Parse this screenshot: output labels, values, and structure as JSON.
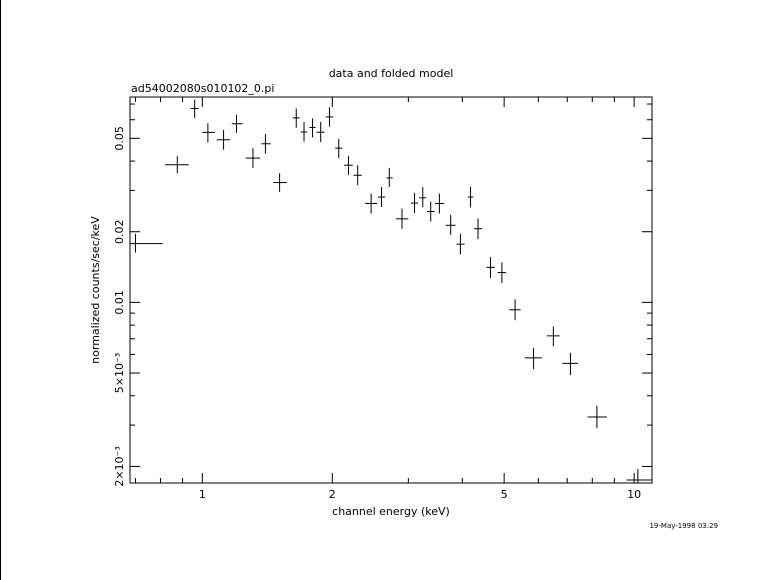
{
  "chart_data": {
    "type": "scatter",
    "title": "data and folded model",
    "subtitle": "ad54002080s010102_0.pi",
    "xlabel": "channel energy (keV)",
    "ylabel": "normalized counts/sec/keV",
    "xscale": "log",
    "yscale": "log",
    "xlim": [
      0.68,
      11.0
    ],
    "ylim": [
      0.0017,
      0.075
    ],
    "x_ticks": [
      {
        "value": 1,
        "label": "1"
      },
      {
        "value": 2,
        "label": "2"
      },
      {
        "value": 5,
        "label": "5"
      },
      {
        "value": 10,
        "label": "10"
      }
    ],
    "y_ticks": [
      {
        "value": 0.002,
        "label": "2×10⁻³"
      },
      {
        "value": 0.005,
        "label": "5×10⁻³"
      },
      {
        "value": 0.01,
        "label": "0.01"
      },
      {
        "value": 0.02,
        "label": "0.02"
      },
      {
        "value": 0.05,
        "label": "0.05"
      }
    ],
    "grid": false,
    "series": [
      {
        "points": [
          {
            "x": 0.7,
            "xlo": 0.68,
            "xhi": 0.81,
            "y": 0.0178,
            "ylo": 0.0163,
            "yhi": 0.0196
          },
          {
            "x": 0.875,
            "xlo": 0.82,
            "xhi": 0.93,
            "y": 0.0386,
            "ylo": 0.0355,
            "yhi": 0.042
          },
          {
            "x": 0.96,
            "xlo": 0.94,
            "xhi": 0.98,
            "y": 0.067,
            "ylo": 0.061,
            "yhi": 0.073
          },
          {
            "x": 1.03,
            "xlo": 1.0,
            "xhi": 1.07,
            "y": 0.053,
            "ylo": 0.048,
            "yhi": 0.058
          },
          {
            "x": 1.12,
            "xlo": 1.08,
            "xhi": 1.16,
            "y": 0.0493,
            "ylo": 0.0447,
            "yhi": 0.0543
          },
          {
            "x": 1.2,
            "xlo": 1.17,
            "xhi": 1.24,
            "y": 0.0577,
            "ylo": 0.0528,
            "yhi": 0.063
          },
          {
            "x": 1.31,
            "xlo": 1.26,
            "xhi": 1.36,
            "y": 0.0412,
            "ylo": 0.0374,
            "yhi": 0.0454
          },
          {
            "x": 1.4,
            "xlo": 1.37,
            "xhi": 1.44,
            "y": 0.0474,
            "ylo": 0.043,
            "yhi": 0.0522
          },
          {
            "x": 1.51,
            "xlo": 1.46,
            "xhi": 1.57,
            "y": 0.0324,
            "ylo": 0.0296,
            "yhi": 0.0355
          },
          {
            "x": 1.65,
            "xlo": 1.62,
            "xhi": 1.68,
            "y": 0.0611,
            "ylo": 0.0554,
            "yhi": 0.067
          },
          {
            "x": 1.72,
            "xlo": 1.69,
            "xhi": 1.75,
            "y": 0.0532,
            "ylo": 0.0484,
            "yhi": 0.0587
          },
          {
            "x": 1.8,
            "xlo": 1.77,
            "xhi": 1.83,
            "y": 0.0556,
            "ylo": 0.0505,
            "yhi": 0.0608
          },
          {
            "x": 1.88,
            "xlo": 1.84,
            "xhi": 1.92,
            "y": 0.0531,
            "ylo": 0.0482,
            "yhi": 0.0587
          },
          {
            "x": 1.97,
            "xlo": 1.93,
            "xhi": 2.01,
            "y": 0.0617,
            "ylo": 0.0561,
            "yhi": 0.0678
          },
          {
            "x": 2.07,
            "xlo": 2.03,
            "xhi": 2.11,
            "y": 0.0454,
            "ylo": 0.0412,
            "yhi": 0.0497
          },
          {
            "x": 2.18,
            "xlo": 2.13,
            "xhi": 2.23,
            "y": 0.0384,
            "ylo": 0.0349,
            "yhi": 0.0421
          },
          {
            "x": 2.29,
            "xlo": 2.24,
            "xhi": 2.34,
            "y": 0.0348,
            "ylo": 0.0316,
            "yhi": 0.0384
          },
          {
            "x": 2.46,
            "xlo": 2.38,
            "xhi": 2.54,
            "y": 0.0264,
            "ylo": 0.0239,
            "yhi": 0.0291
          },
          {
            "x": 2.6,
            "xlo": 2.55,
            "xhi": 2.65,
            "y": 0.0281,
            "ylo": 0.0255,
            "yhi": 0.031
          },
          {
            "x": 2.71,
            "xlo": 2.67,
            "xhi": 2.76,
            "y": 0.0339,
            "ylo": 0.031,
            "yhi": 0.0374
          },
          {
            "x": 2.9,
            "xlo": 2.81,
            "xhi": 3.0,
            "y": 0.0227,
            "ylo": 0.0206,
            "yhi": 0.0251
          },
          {
            "x": 3.1,
            "xlo": 3.04,
            "xhi": 3.16,
            "y": 0.0265,
            "ylo": 0.024,
            "yhi": 0.0293
          },
          {
            "x": 3.24,
            "xlo": 3.18,
            "xhi": 3.3,
            "y": 0.0279,
            "ylo": 0.0254,
            "yhi": 0.031
          },
          {
            "x": 3.38,
            "xlo": 3.31,
            "xhi": 3.45,
            "y": 0.0244,
            "ylo": 0.0221,
            "yhi": 0.0269
          },
          {
            "x": 3.54,
            "xlo": 3.46,
            "xhi": 3.63,
            "y": 0.0264,
            "ylo": 0.0239,
            "yhi": 0.0291
          },
          {
            "x": 3.76,
            "xlo": 3.66,
            "xhi": 3.86,
            "y": 0.0213,
            "ylo": 0.0194,
            "yhi": 0.0236
          },
          {
            "x": 3.96,
            "xlo": 3.88,
            "xhi": 4.05,
            "y": 0.0177,
            "ylo": 0.016,
            "yhi": 0.0196
          },
          {
            "x": 4.18,
            "xlo": 4.12,
            "xhi": 4.24,
            "y": 0.0281,
            "ylo": 0.0254,
            "yhi": 0.0311
          },
          {
            "x": 4.35,
            "xlo": 4.26,
            "xhi": 4.45,
            "y": 0.0206,
            "ylo": 0.0186,
            "yhi": 0.0228
          },
          {
            "x": 4.65,
            "xlo": 4.55,
            "xhi": 4.76,
            "y": 0.0141,
            "ylo": 0.0127,
            "yhi": 0.0156
          },
          {
            "x": 4.94,
            "xlo": 4.83,
            "xhi": 5.05,
            "y": 0.0134,
            "ylo": 0.0121,
            "yhi": 0.0148
          },
          {
            "x": 5.3,
            "xlo": 5.14,
            "xhi": 5.46,
            "y": 0.0093,
            "ylo": 0.0084,
            "yhi": 0.0103
          },
          {
            "x": 5.85,
            "xlo": 5.58,
            "xhi": 6.12,
            "y": 0.0058,
            "ylo": 0.0052,
            "yhi": 0.0064
          },
          {
            "x": 6.5,
            "xlo": 6.28,
            "xhi": 6.72,
            "y": 0.0072,
            "ylo": 0.0065,
            "yhi": 0.0079
          },
          {
            "x": 7.12,
            "xlo": 6.82,
            "xhi": 7.42,
            "y": 0.0055,
            "ylo": 0.0049,
            "yhi": 0.0061
          },
          {
            "x": 8.2,
            "xlo": 7.8,
            "xhi": 8.65,
            "y": 0.00325,
            "ylo": 0.00291,
            "yhi": 0.00363
          },
          {
            "x": 10.2,
            "xlo": 9.6,
            "xhi": 11.0,
            "y": 0.00175,
            "ylo": 0.0017,
            "yhi": 0.00195
          }
        ]
      }
    ]
  },
  "timestamp": "19-May-1998 03:29"
}
